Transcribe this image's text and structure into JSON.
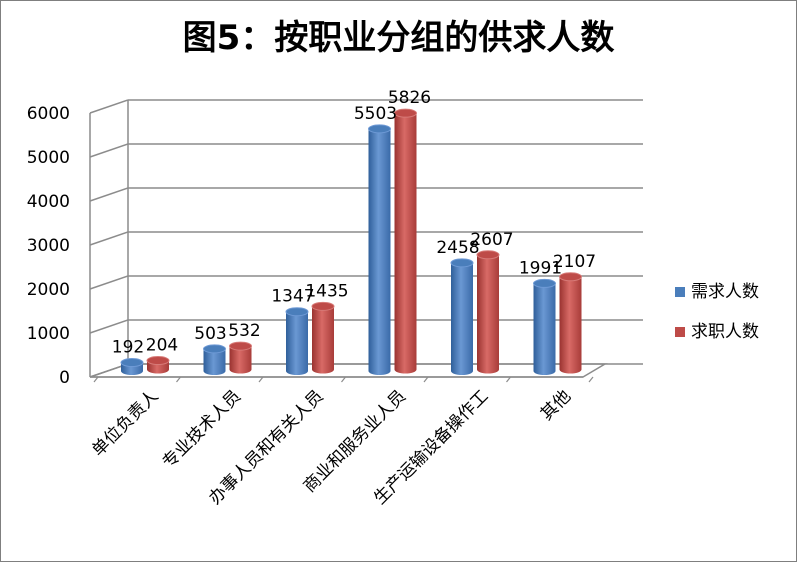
{
  "chart_data": {
    "type": "bar",
    "title": "图5：按职业分组的供求人数",
    "categories": [
      "单位负责人",
      "专业技术人员",
      "办事人员和有关人员",
      "商业和服务业人员",
      "生产运输设备操作工",
      "其他"
    ],
    "series": [
      {
        "name": "需求人数",
        "values": [
          192,
          503,
          1347,
          5503,
          2458,
          1991
        ],
        "color": "#4a7ebb"
      },
      {
        "name": "求职人数",
        "values": [
          204,
          532,
          1435,
          5826,
          2607,
          2107
        ],
        "color": "#be4b48"
      }
    ],
    "yticks": [
      0,
      1000,
      2000,
      3000,
      4000,
      5000,
      6000
    ],
    "ylim": [
      0,
      6000
    ],
    "grid": true,
    "legend": "right"
  }
}
